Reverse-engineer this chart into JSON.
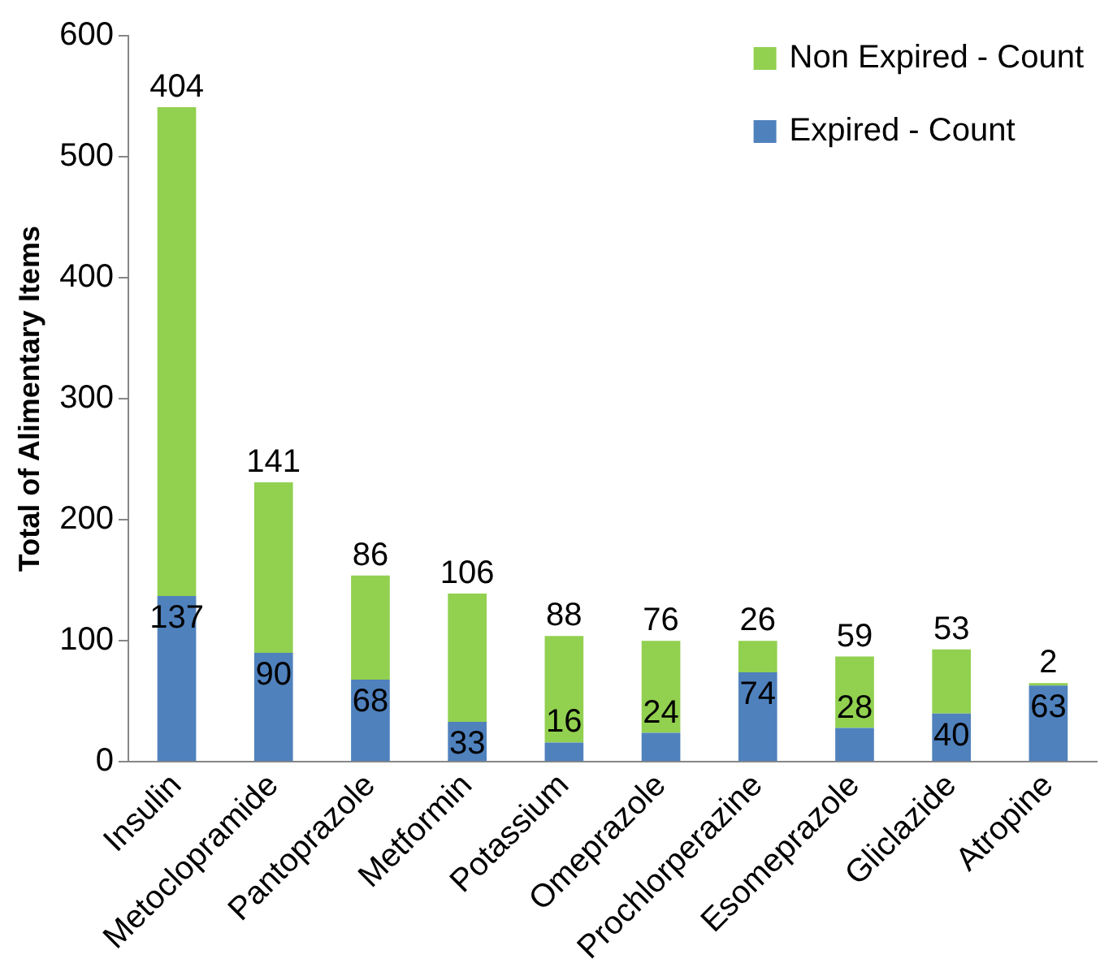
{
  "chart_data": {
    "type": "bar",
    "ylabel": "Total of Alimentary Items",
    "categories": [
      "Insulin",
      "Metoclopramide",
      "Pantoprazole",
      "Metformin",
      "Potassium",
      "Omeprazole",
      "Prochlorperazine",
      "Esomeprazole",
      "Gliclazide",
      "Atropine"
    ],
    "series": [
      {
        "name": "Expired - Count",
        "color": "#4f81bd",
        "values": [
          137,
          90,
          68,
          33,
          16,
          24,
          74,
          28,
          40,
          63
        ]
      },
      {
        "name": "Non Expired - Count",
        "color": "#92d050",
        "values": [
          404,
          141,
          86,
          106,
          88,
          76,
          26,
          59,
          53,
          2
        ]
      }
    ],
    "stacked": true,
    "ylim": [
      0,
      600
    ],
    "yticks": [
      0,
      100,
      200,
      300,
      400,
      500,
      600
    ],
    "grid": false,
    "legend": "top right",
    "data_labels": true
  }
}
